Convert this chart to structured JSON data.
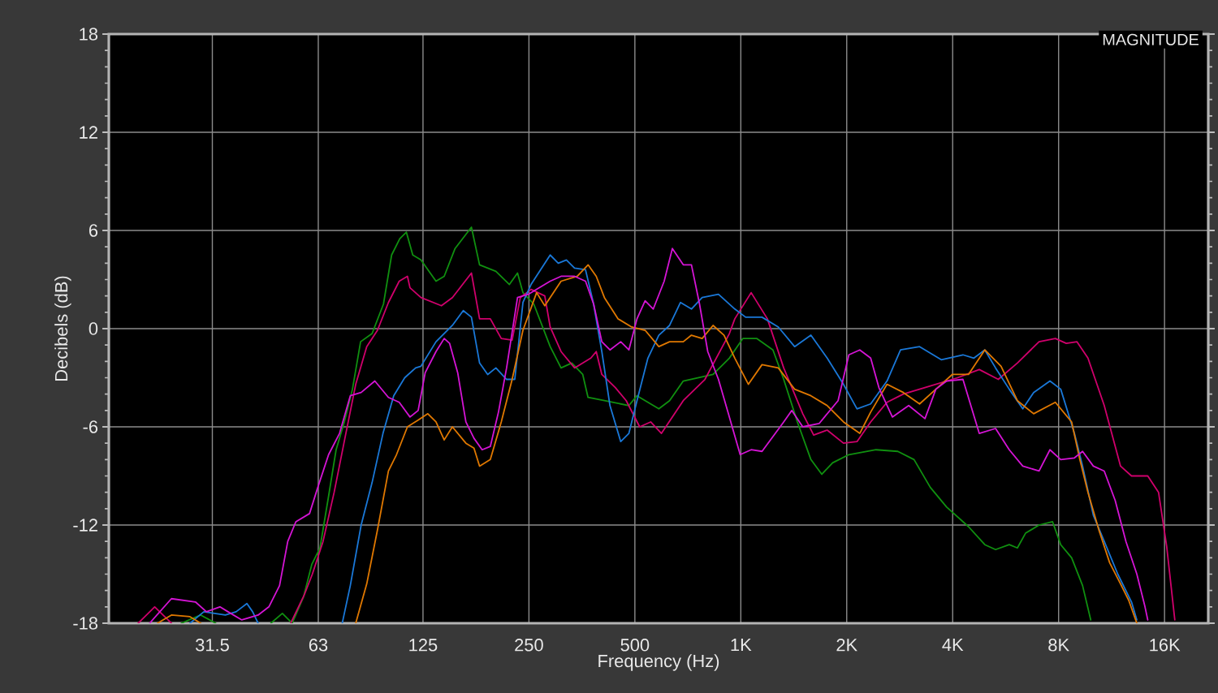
{
  "chart_data": {
    "type": "line",
    "title": "MAGNITUDE",
    "xlabel": "Frequency (Hz)",
    "ylabel": "Decibels (dB)",
    "log": "x",
    "grid": true,
    "xlim": [
      16,
      21300
    ],
    "ylim": [
      -18,
      18
    ],
    "xticks": [
      {
        "value": 31.5,
        "label": "31.5"
      },
      63,
      125,
      250,
      500,
      {
        "value": 1000,
        "label": "1K"
      },
      {
        "value": 2000,
        "label": "2K"
      },
      {
        "value": 4000,
        "label": "4K"
      },
      {
        "value": 8000,
        "label": "8K"
      },
      {
        "value": 16000,
        "label": "16K"
      }
    ],
    "yticks": [
      -18,
      -12,
      -6,
      0,
      6,
      12,
      18
    ],
    "series": [
      {
        "color": "#109010",
        "x": [
          25.7,
          29.2,
          32.2,
          40,
          46.2,
          49.8,
          53.1,
          57.2,
          60.4,
          63.7,
          67.2,
          70.8,
          74.7,
          78.8,
          83.1,
          89.6,
          96.5,
          101.8,
          107.4,
          112.1,
          116.9,
          123.3,
          136.1,
          143.6,
          154.2,
          171.6,
          181,
          201.4,
          220,
          232,
          240.4,
          258.1,
          287.3,
          308.5,
          331,
          355.5,
          368,
          409.6,
          480.8,
          507,
          584.9,
          627.5,
          686.3,
          834,
          928,
          1014,
          1109,
          1234,
          1324,
          1448,
          1582,
          1699,
          1823,
          2028,
          2423,
          2793,
          3107,
          3456,
          3846,
          4436,
          4936,
          5296,
          5792,
          6108,
          6444,
          7040,
          7692,
          8112,
          8712,
          9358,
          9872
        ],
        "values": [
          -18.0,
          -17.5,
          -18.0,
          null,
          -18.0,
          -17.4,
          -18.0,
          -16.4,
          -14.4,
          -13.4,
          -10.4,
          -7.4,
          -5.7,
          -3.7,
          -0.8,
          -0.3,
          1.5,
          4.5,
          5.5,
          5.9,
          4.5,
          4.2,
          2.9,
          3.2,
          4.9,
          6.2,
          3.9,
          3.5,
          2.7,
          3.4,
          2.2,
          1.5,
          -1.1,
          -2.4,
          -2.1,
          -2.8,
          -4.2,
          -4.4,
          -4.7,
          -4.1,
          -4.9,
          -4.4,
          -3.2,
          -2.8,
          -1.8,
          -0.6,
          -0.6,
          -1.3,
          -3.1,
          -5.7,
          -8.0,
          -8.9,
          -8.2,
          -7.7,
          -7.4,
          -7.5,
          -8.0,
          -9.7,
          -10.9,
          -12.1,
          -13.2,
          -13.5,
          -13.2,
          -13.4,
          -12.5,
          -12.0,
          -11.8,
          -13.2,
          -14.0,
          -15.7,
          -17.8
        ]
      },
      {
        "color": "#D0006C",
        "x": [
          19.4,
          21.6,
          24.1,
          35,
          52.6,
          57.4,
          60.6,
          65.0,
          69.9,
          75.0,
          80.5,
          86.5,
          92.8,
          99.7,
          107.0,
          112.9,
          114.8,
          123.3,
          141,
          151.5,
          171.6,
          181,
          194.2,
          208.6,
          224,
          236.3,
          253.5,
          277.3,
          287.3,
          308.5,
          337,
          374.9,
          388.4,
          402.8,
          440,
          472.5,
          516,
          554.5,
          595,
          686.3,
          791,
          928,
          961.5,
          1070,
          1190,
          1324,
          1500,
          1611,
          1760,
          1958,
          2139,
          2339,
          2603,
          2896,
          3456,
          4130,
          4760,
          5392,
          6108,
          7040,
          7832,
          8411,
          9024,
          9693,
          10784,
          11998,
          12888,
          14336,
          15384,
          16224,
          17112
        ],
        "values": [
          -18.0,
          -17.0,
          -18.0,
          null,
          -18.0,
          -16.3,
          -15.0,
          -13.0,
          -10.0,
          -6.7,
          -3.4,
          -1.1,
          -0.1,
          1.6,
          2.9,
          3.2,
          2.5,
          1.9,
          1.4,
          1.9,
          3.4,
          0.6,
          0.6,
          -0.6,
          -0.7,
          1.9,
          2.4,
          2.0,
          0.1,
          -1.4,
          -2.4,
          -1.8,
          -1.4,
          -2.8,
          -3.6,
          -4.4,
          -6.0,
          -5.7,
          -6.4,
          -4.4,
          -3.1,
          -0.3,
          0.6,
          2.2,
          0.6,
          -2.4,
          -5.2,
          -6.5,
          -6.2,
          -7.0,
          -6.9,
          -5.7,
          -4.5,
          -4.0,
          -3.5,
          -3.0,
          -2.5,
          -3.1,
          -2.1,
          -0.8,
          -0.6,
          -0.9,
          -0.8,
          -1.8,
          -4.7,
          -8.4,
          -9.0,
          -9.0,
          -10.0,
          -13.3,
          -17.8
        ]
      },
      {
        "color": "#1A78D8",
        "x": [
          27.2,
          29.8,
          34.3,
          36.8,
          39.5,
          41.0,
          42.5,
          55,
          73.7,
          77.7,
          83.4,
          89.6,
          96.2,
          103.2,
          110.9,
          119.1,
          123.3,
          136.1,
          151.5,
          162.7,
          171.6,
          181,
          190.9,
          201.4,
          216,
          227.9,
          240.4,
          253.5,
          287.3,
          302.9,
          319.5,
          337,
          362,
          381.8,
          402.8,
          424.8,
          455.8,
          480.8,
          507,
          544.5,
          584.9,
          627.5,
          674,
          724,
          776.7,
          864,
          961.5,
          1032,
          1149,
          1278,
          1422,
          1582,
          1760,
          1958,
          2139,
          2339,
          2603,
          2844,
          3222,
          3712,
          4278,
          4596,
          4936,
          5296,
          5792,
          6328,
          6796,
          7560,
          8112,
          8872,
          9358,
          10040,
          10784,
          11782,
          12888,
          13348
        ],
        "values": [
          -18.0,
          -17.3,
          -17.5,
          -17.3,
          -16.8,
          -17.3,
          -18.0,
          null,
          -18.0,
          -15.7,
          -12.0,
          -9.4,
          -6.4,
          -4.1,
          -3.0,
          -2.4,
          -2.3,
          -0.8,
          0.2,
          1.1,
          0.7,
          -2.1,
          -2.8,
          -2.4,
          -3.1,
          -3.1,
          1.6,
          2.7,
          4.5,
          4.0,
          4.2,
          3.7,
          3.6,
          1.5,
          -1.4,
          -4.7,
          -6.9,
          -6.4,
          -4.4,
          -1.8,
          -0.4,
          0.2,
          1.6,
          1.2,
          1.9,
          2.1,
          1.2,
          0.7,
          0.7,
          0.1,
          -1.1,
          -0.4,
          -1.8,
          -3.4,
          -4.9,
          -4.6,
          -3.2,
          -1.3,
          -1.1,
          -1.9,
          -1.6,
          -1.8,
          -1.3,
          -2.4,
          -3.7,
          -4.9,
          -3.9,
          -3.2,
          -3.7,
          -6.4,
          -8.4,
          -11.4,
          -13.0,
          -15.0,
          -16.7,
          -17.8
        ]
      },
      {
        "color": "#E07800",
        "x": [
          22.0,
          24.1,
          27.2,
          29.2,
          50,
          80.5,
          86.5,
          92.8,
          99.7,
          105.1,
          112.9,
          120.8,
          129,
          136.1,
          143.6,
          151.5,
          165.5,
          174.5,
          181,
          194.2,
          208.6,
          224,
          240.4,
          262.9,
          277.3,
          308.5,
          343.1,
          368.2,
          388.4,
          409.6,
          448,
          489.5,
          534.7,
          584.9,
          627.5,
          686.3,
          724,
          776.7,
          834,
          896,
          961.5,
          1051,
          1149,
          1278,
          1422,
          1582,
          1760,
          1958,
          2178,
          2339,
          2603,
          2896,
          3222,
          3584,
          3990,
          4436,
          4936,
          5490,
          6108,
          6796,
          7832,
          8712,
          9192,
          9693,
          10410,
          11170,
          11998,
          12656,
          13348
        ],
        "values": [
          -18.0,
          -17.5,
          -17.6,
          -18.0,
          null,
          -18.0,
          -15.6,
          -12.3,
          -8.7,
          -7.7,
          -6.0,
          -5.6,
          -5.2,
          -5.7,
          -6.8,
          -6.0,
          -7.0,
          -7.3,
          -8.4,
          -8.0,
          -5.7,
          -3.1,
          -0.1,
          2.2,
          1.4,
          2.9,
          3.2,
          3.9,
          3.2,
          1.9,
          0.6,
          0.1,
          -0.1,
          -1.1,
          -0.8,
          -0.8,
          -0.4,
          -0.6,
          0.2,
          -0.4,
          -1.8,
          -3.4,
          -2.2,
          -2.4,
          -3.7,
          -4.1,
          -4.7,
          -5.7,
          -6.4,
          -5.1,
          -3.4,
          -3.9,
          -4.6,
          -3.7,
          -2.8,
          -2.8,
          -1.3,
          -2.3,
          -4.4,
          -5.2,
          -4.5,
          -5.7,
          -8.0,
          -10.0,
          -12.3,
          -14.3,
          -15.6,
          -16.6,
          -18.0
        ]
      },
      {
        "color": "#D514D5",
        "x": [
          20.9,
          24.1,
          28.2,
          30.3,
          33.1,
          34.9,
          38.2,
          42.5,
          45.6,
          48.9,
          51.6,
          54.4,
          59.5,
          62.8,
          67.4,
          72.4,
          77.7,
          83.4,
          91.2,
          99.7,
          107.0,
          114.8,
          121.1,
          126.8,
          136.1,
          143.6,
          148.8,
          156.9,
          165.5,
          174.5,
          184.1,
          194.2,
          204.8,
          216,
          232,
          249,
          262.9,
          287.3,
          308.5,
          337,
          362,
          381.8,
          402.8,
          424.8,
          455.8,
          480.8,
          507,
          534.7,
          564,
          605.8,
          639,
          686.3,
          724,
          763.5,
          805.5,
          864,
          928,
          996,
          1070,
          1149,
          1324,
          1396,
          1500,
          1669,
          1890,
          2028,
          2178,
          2339,
          2468,
          2696,
          3000,
          3337,
          3584,
          3846,
          4278,
          4760,
          5296,
          5792,
          6328,
          7040,
          7560,
          8112,
          8872,
          9358,
          10040,
          10784,
          11584,
          12427,
          13348,
          14080,
          14336
        ],
        "values": [
          -18.0,
          -16.5,
          -16.7,
          -17.3,
          -17.0,
          -17.3,
          -17.8,
          -17.5,
          -17.0,
          -15.7,
          -13.0,
          -11.8,
          -11.3,
          -9.7,
          -7.7,
          -6.4,
          -4.1,
          -3.9,
          -3.2,
          -4.2,
          -4.5,
          -5.4,
          -5.0,
          -2.7,
          -1.4,
          -0.6,
          -0.9,
          -2.7,
          -5.7,
          -6.7,
          -7.4,
          -7.2,
          -5.1,
          -2.4,
          1.9,
          2.1,
          2.4,
          2.9,
          3.2,
          3.2,
          2.9,
          1.5,
          -0.8,
          -1.3,
          -0.8,
          -1.3,
          0.6,
          1.7,
          1.2,
          2.9,
          4.9,
          3.9,
          3.9,
          1.5,
          -1.4,
          -3.1,
          -5.4,
          -7.7,
          -7.4,
          -7.5,
          -5.7,
          -5.0,
          -6.0,
          -5.8,
          -4.4,
          -1.6,
          -1.3,
          -1.8,
          -3.6,
          -5.4,
          -4.7,
          -5.5,
          -3.7,
          -3.2,
          -3.1,
          -6.4,
          -6.1,
          -7.4,
          -8.4,
          -8.7,
          -7.4,
          -8.0,
          -7.9,
          -7.5,
          -8.4,
          -8.7,
          -10.5,
          -13.0,
          -15.0,
          -17.0,
          -17.8
        ]
      }
    ]
  }
}
